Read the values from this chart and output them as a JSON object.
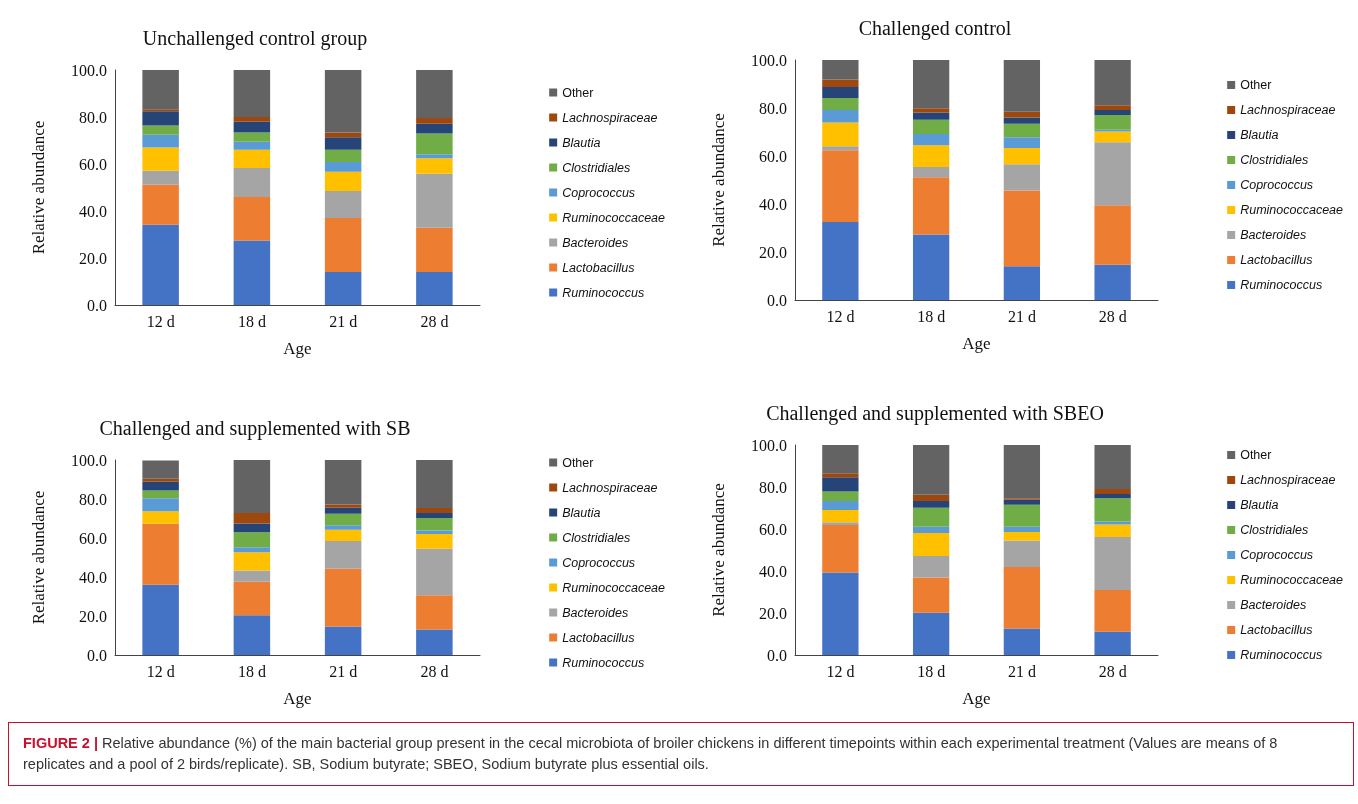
{
  "chart_data": [
    {
      "type": "bar",
      "stacked": true,
      "title": "Unchallenged control group",
      "xlabel": "Age",
      "ylabel": "Relative abundance",
      "categories": [
        "12 d",
        "18 d",
        "21 d",
        "28 d"
      ],
      "ylim": [
        0,
        100
      ],
      "yticks": [
        {
          "value": 0,
          "label": "0.0"
        },
        {
          "value": 20,
          "label": "20.0"
        },
        {
          "value": 40,
          "label": "40.0"
        },
        {
          "value": 60,
          "label": "60.0"
        },
        {
          "value": 80,
          "label": "80.0"
        },
        {
          "value": 100,
          "label": "100.0"
        }
      ],
      "grid": false,
      "legend": "right",
      "annotations": [
        "FIGURE 2 | Relative abundance (%) of the main bacterial group present in the cecal microbiota of broiler chickens in different timepoints within each experimental treatment (Values are means of 8 replicates and a pool of 2 birds/replicate). SB, Sodium butyrate; SBEO, Sodium butyrate plus essential oils."
      ],
      "series": [
        {
          "name": "Ruminococcus",
          "color": "#4472c4",
          "values": [
            34.1,
            27.5,
            14.0,
            14.0
          ]
        },
        {
          "name": "Lactobacillus",
          "color": "#ed7d31",
          "values": [
            17.1,
            18.5,
            23.0,
            18.9
          ]
        },
        {
          "name": "Bacteroides",
          "color": "#a5a5a5",
          "values": [
            5.9,
            12.3,
            11.5,
            22.9
          ]
        },
        {
          "name": "Ruminococcaceae",
          "color": "#ffc000",
          "values": [
            9.9,
            7.8,
            8.2,
            6.6
          ]
        },
        {
          "name": "Coprococcus",
          "color": "#5b9bd5",
          "values": [
            5.5,
            3.4,
            4.1,
            1.8
          ]
        },
        {
          "name": "Clostridiales",
          "color": "#70ad47",
          "values": [
            3.9,
            3.9,
            5.3,
            8.8
          ]
        },
        {
          "name": "Blautia",
          "color": "#264478",
          "values": [
            6.1,
            4.6,
            5.3,
            4.1
          ]
        },
        {
          "name": "Lachnospiraceae",
          "color": "#9e480e",
          "values": [
            0.8,
            2.0,
            2.0,
            2.5
          ]
        },
        {
          "name": "Other",
          "color": "#636363",
          "values": [
            16.7,
            20.0,
            26.6,
            20.4
          ]
        }
      ]
    },
    {
      "type": "bar",
      "stacked": true,
      "title": "Challenged control",
      "xlabel": "Age",
      "ylabel": "Relative abundance",
      "categories": [
        "12 d",
        "18 d",
        "21 d",
        "28 d"
      ],
      "ylim": [
        0,
        100
      ],
      "yticks": [
        {
          "value": 0,
          "label": "0.0"
        },
        {
          "value": 20,
          "label": "20.0"
        },
        {
          "value": 40,
          "label": "40.0"
        },
        {
          "value": 60,
          "label": "60.0"
        },
        {
          "value": 80,
          "label": "80.0"
        },
        {
          "value": 100,
          "label": "100.0"
        }
      ],
      "grid": false,
      "legend": "right",
      "series": [
        {
          "name": "Ruminococcus",
          "color": "#4472c4",
          "values": [
            32.5,
            27.3,
            14.1,
            14.7
          ]
        },
        {
          "name": "Lactobacillus",
          "color": "#ed7d31",
          "values": [
            29.9,
            23.8,
            31.5,
            24.8
          ]
        },
        {
          "name": "Bacteroides",
          "color": "#a5a5a5",
          "values": [
            1.7,
            4.3,
            11.0,
            26.2
          ]
        },
        {
          "name": "Ruminococcaceae",
          "color": "#ffc000",
          "values": [
            9.9,
            9.1,
            6.7,
            4.5
          ]
        },
        {
          "name": "Coprococcus",
          "color": "#5b9bd5",
          "values": [
            5.2,
            4.7,
            4.5,
            0.7
          ]
        },
        {
          "name": "Clostridiales",
          "color": "#70ad47",
          "values": [
            5.0,
            5.9,
            5.6,
            6.2
          ]
        },
        {
          "name": "Blautia",
          "color": "#264478",
          "values": [
            4.5,
            3.0,
            2.6,
            2.1
          ]
        },
        {
          "name": "Lachnospiraceae",
          "color": "#9e480e",
          "values": [
            3.2,
            1.8,
            2.4,
            1.9
          ]
        },
        {
          "name": "Other",
          "color": "#636363",
          "values": [
            8.1,
            20.1,
            21.6,
            18.9
          ]
        }
      ]
    },
    {
      "type": "bar",
      "stacked": true,
      "title": "Challenged and supplemented with SB",
      "xlabel": "Age",
      "ylabel": "Relative abundance",
      "categories": [
        "12 d",
        "18 d",
        "21 d",
        "28 d"
      ],
      "ylim": [
        0,
        100
      ],
      "yticks": [
        {
          "value": 0,
          "label": "0.0"
        },
        {
          "value": 20,
          "label": "20.0"
        },
        {
          "value": 40,
          "label": "40.0"
        },
        {
          "value": 60,
          "label": "60.0"
        },
        {
          "value": 80,
          "label": "80.0"
        },
        {
          "value": 100,
          "label": "100.0"
        }
      ],
      "grid": false,
      "legend": "right",
      "series": [
        {
          "name": "Ruminococcus",
          "color": "#4472c4",
          "values": [
            36.0,
            20.4,
            14.6,
            13.1
          ]
        },
        {
          "name": "Lactobacillus",
          "color": "#ed7d31",
          "values": [
            31.3,
            17.2,
            29.6,
            17.6
          ]
        },
        {
          "name": "Bacteroides",
          "color": "#a5a5a5",
          "values": [
            null,
            5.7,
            14.3,
            23.8
          ]
        },
        {
          "name": "Ruminococcaceae",
          "color": "#ffc000",
          "values": [
            6.4,
            9.4,
            5.7,
            7.6
          ]
        },
        {
          "name": "Coprococcus",
          "color": "#5b9bd5",
          "values": [
            6.7,
            2.5,
            2.4,
            1.8
          ]
        },
        {
          "name": "Clostridiales",
          "color": "#70ad47",
          "values": [
            3.9,
            7.8,
            5.8,
            6.4
          ]
        },
        {
          "name": "Blautia",
          "color": "#264478",
          "values": [
            4.5,
            4.5,
            3.1,
            2.5
          ]
        },
        {
          "name": "Lachnospiraceae",
          "color": "#9e480e",
          "values": [
            1.6,
            5.3,
            1.7,
            2.6
          ]
        },
        {
          "name": "Other",
          "color": "#636363",
          "values": [
            9.3,
            27.2,
            22.8,
            24.6
          ]
        }
      ]
    },
    {
      "type": "bar",
      "stacked": true,
      "title": "Challenged and supplemented with SBEO",
      "xlabel": "Age",
      "ylabel": "Relative abundance",
      "categories": [
        "12 d",
        "18 d",
        "21 d",
        "28 d"
      ],
      "ylim": [
        0,
        100
      ],
      "yticks": [
        {
          "value": 0,
          "label": "0.0"
        },
        {
          "value": 20,
          "label": "20.0"
        },
        {
          "value": 40,
          "label": "40.0"
        },
        {
          "value": 60,
          "label": "60.0"
        },
        {
          "value": 80,
          "label": "80.0"
        },
        {
          "value": 100,
          "label": "100.0"
        }
      ],
      "grid": false,
      "legend": "right",
      "series": [
        {
          "name": "Ruminococcus",
          "color": "#4472c4",
          "values": [
            39.3,
            20.1,
            12.6,
            11.1
          ]
        },
        {
          "name": "Lactobacillus",
          "color": "#ed7d31",
          "values": [
            22.6,
            16.8,
            29.3,
            19.9
          ]
        },
        {
          "name": "Bacteroides",
          "color": "#a5a5a5",
          "values": [
            1.3,
            10.3,
            12.6,
            25.2
          ]
        },
        {
          "name": "Ruminococcaceae",
          "color": "#ffc000",
          "values": [
            5.8,
            10.9,
            4.1,
            6.0
          ]
        },
        {
          "name": "Coprococcus",
          "color": "#5b9bd5",
          "values": [
            4.3,
            3.0,
            2.5,
            1.4
          ]
        },
        {
          "name": "Clostridiales",
          "color": "#70ad47",
          "values": [
            4.6,
            9.0,
            10.5,
            11.0
          ]
        },
        {
          "name": "Blautia",
          "color": "#264478",
          "values": [
            6.7,
            3.2,
            2.3,
            2.1
          ]
        },
        {
          "name": "Lachnospiraceae",
          "color": "#9e480e",
          "values": [
            1.9,
            3.0,
            0.8,
            2.4
          ]
        },
        {
          "name": "Other",
          "color": "#636363",
          "values": [
            13.5,
            23.7,
            25.3,
            20.9
          ]
        }
      ]
    }
  ]
}
